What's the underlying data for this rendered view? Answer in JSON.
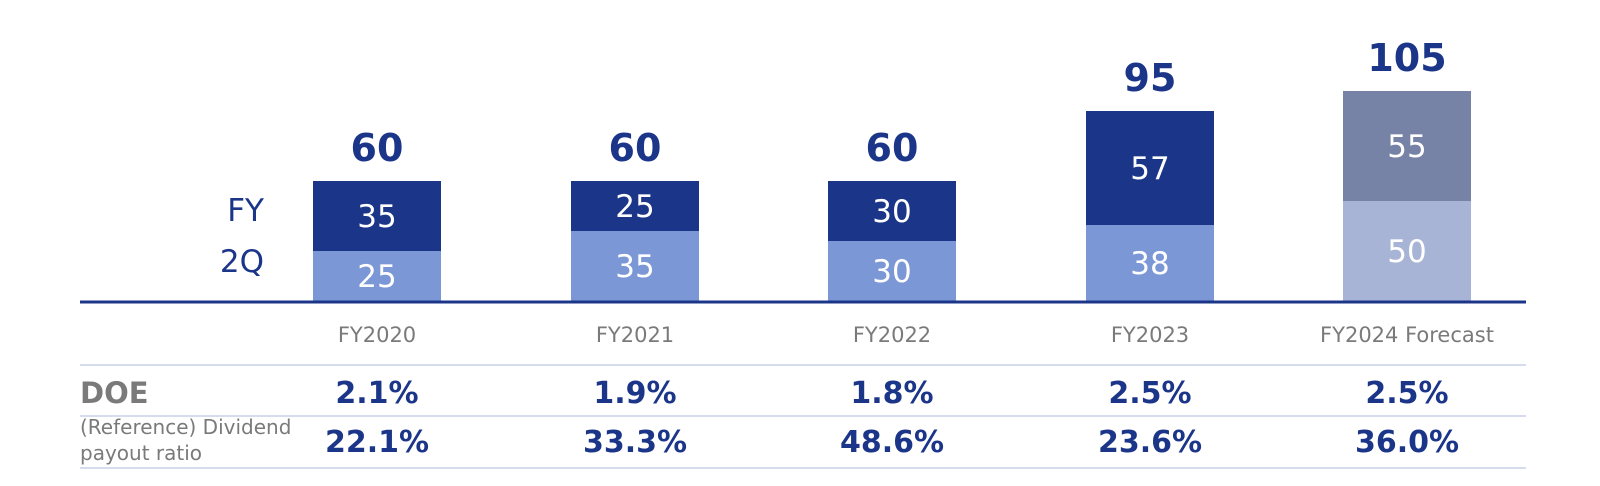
{
  "chart_data": {
    "type": "bar",
    "stacked": true,
    "categories": [
      "FY2020",
      "FY2021",
      "FY2022",
      "FY2023",
      "FY2024 Forecast"
    ],
    "series": [
      {
        "name": "2Q",
        "values": [
          25,
          35,
          30,
          38,
          50
        ],
        "colors": [
          "#7b97d6",
          "#7b97d6",
          "#7b97d6",
          "#7b97d6",
          "#a7b4d6"
        ]
      },
      {
        "name": "FY",
        "values": [
          35,
          25,
          30,
          57,
          55
        ],
        "colors": [
          "#1b3589",
          "#1b3589",
          "#1b3589",
          "#1b3589",
          "#7682a6"
        ]
      }
    ],
    "totals": [
      60,
      60,
      60,
      95,
      105
    ],
    "ylim": [
      0,
      110
    ],
    "grid": false,
    "legend": "left"
  },
  "table": {
    "rows": [
      {
        "label": "DOE",
        "values": [
          "2.1%",
          "1.9%",
          "1.8%",
          "2.5%",
          "2.5%"
        ]
      },
      {
        "label_lines": [
          "(Reference) Dividend",
          "payout ratio"
        ],
        "values": [
          "22.1%",
          "33.3%",
          "48.6%",
          "23.6%",
          "36.0%"
        ]
      }
    ]
  },
  "colors": {
    "navy": "#1b3589",
    "light_blue": "#7b97d6",
    "forecast_dark": "#7682a6",
    "forecast_light": "#a7b4d6",
    "axis": "#1b3589",
    "divider": "#c9d1e8",
    "tick_text": "#7a7a7a"
  }
}
